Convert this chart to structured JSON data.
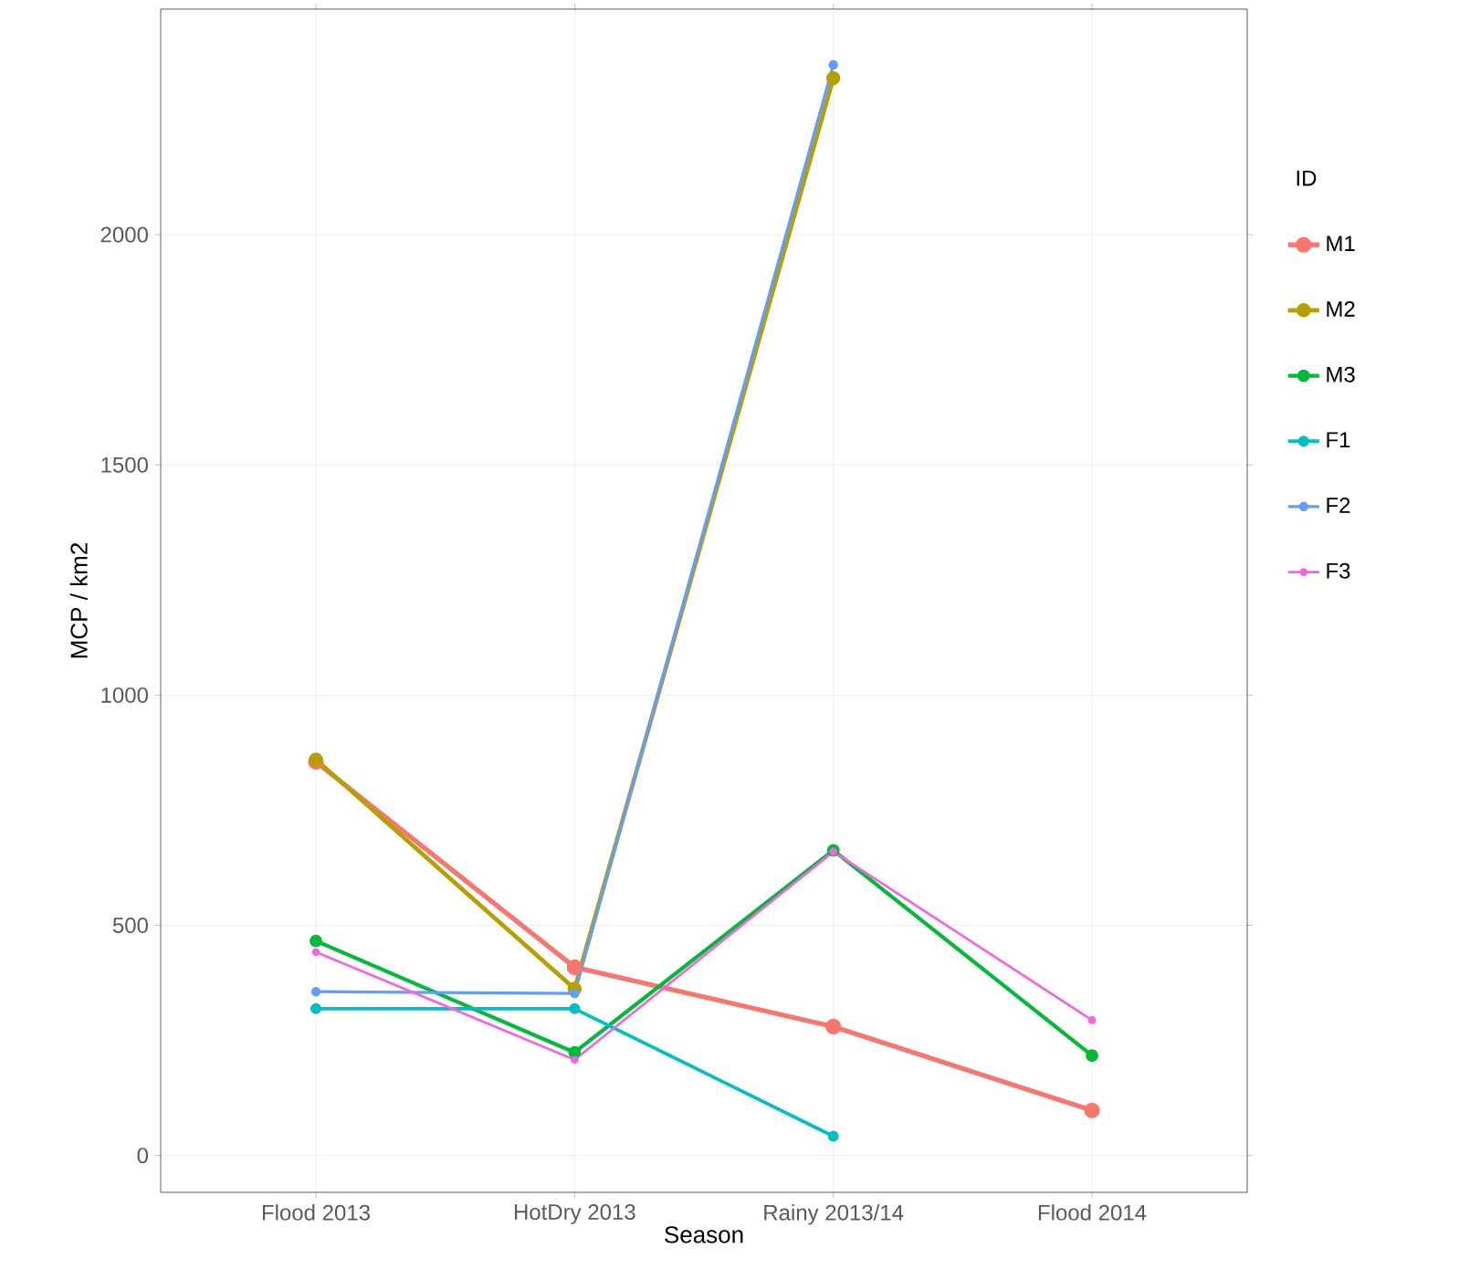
{
  "chart_data": {
    "type": "line",
    "xlabel": "Season",
    "ylabel": "MCP / km2",
    "legend_title": "ID",
    "categories": [
      "Flood 2013",
      "HotDry 2013",
      "Rainy 2013/14",
      "Flood 2014"
    ],
    "series": [
      {
        "name": "M1",
        "color": "#f8766d",
        "values": [
          855,
          409,
          280,
          98
        ]
      },
      {
        "name": "M2",
        "color": "#b79f00",
        "values": [
          860,
          362,
          2340,
          null
        ]
      },
      {
        "name": "M3",
        "color": "#00ba38",
        "values": [
          466,
          224,
          663,
          217
        ]
      },
      {
        "name": "F1",
        "color": "#00bfc4",
        "values": [
          319,
          319,
          42,
          null
        ]
      },
      {
        "name": "F2",
        "color": "#619cff",
        "values": [
          356,
          352,
          2369,
          null
        ]
      },
      {
        "name": "F3",
        "color": "#f564e3",
        "values": [
          442,
          208,
          660,
          294
        ]
      }
    ],
    "ylim": [
      -80,
      2490
    ],
    "yticks": [
      0,
      500,
      1000,
      1500,
      2000
    ],
    "grid": true,
    "legend": "right",
    "marker": "circle",
    "line_style": "solid"
  }
}
